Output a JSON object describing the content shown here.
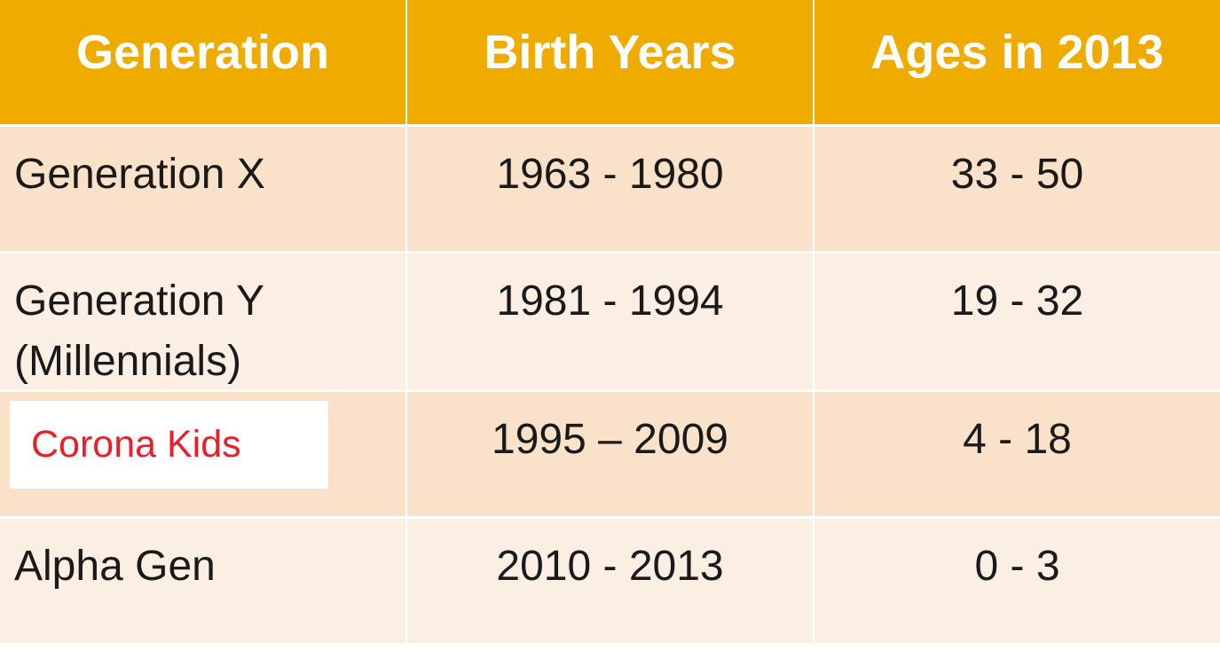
{
  "table": {
    "headers": [
      "Generation",
      "Birth Years",
      "Ages in 2013"
    ],
    "rows": [
      {
        "generation": "Generation X",
        "birth_years": "1963 - 1980",
        "ages": "33 - 50"
      },
      {
        "generation": "Generation Y",
        "generation_line2": "(Millennials)",
        "birth_years": "1981 - 1994",
        "ages": "19 - 32"
      },
      {
        "generation": "Corona Kids",
        "birth_years": "1995 – 2009",
        "ages": "4 - 18"
      },
      {
        "generation": "Alpha Gen",
        "birth_years": "2010 - 2013",
        "ages": "0 - 3"
      }
    ]
  },
  "colors": {
    "header_bg": "#f0ab00",
    "row_dark": "#f9e2c9",
    "row_light": "#fbefe4",
    "highlight_text": "#e8202a"
  }
}
